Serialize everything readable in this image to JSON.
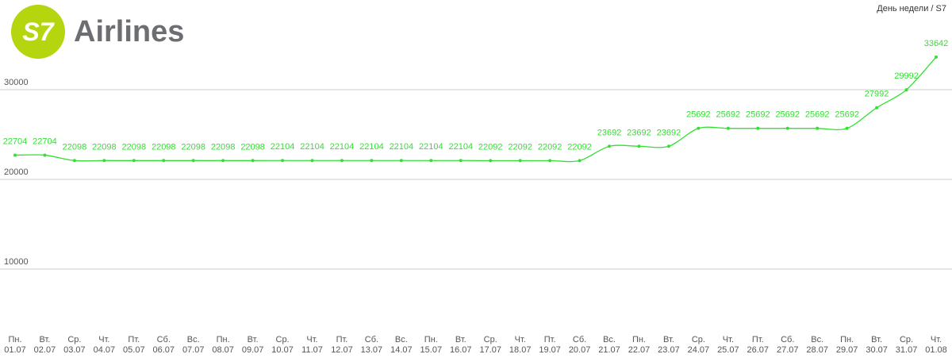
{
  "logo": {
    "mark": "S7",
    "name": "Airlines"
  },
  "chart_data": {
    "type": "line",
    "legend_label": "День недели / S7",
    "categories": [
      [
        "Пн.",
        "01.07"
      ],
      [
        "Вт.",
        "02.07"
      ],
      [
        "Ср.",
        "03.07"
      ],
      [
        "Чт.",
        "04.07"
      ],
      [
        "Пт.",
        "05.07"
      ],
      [
        "Сб.",
        "06.07"
      ],
      [
        "Вс.",
        "07.07"
      ],
      [
        "Пн.",
        "08.07"
      ],
      [
        "Вт.",
        "09.07"
      ],
      [
        "Ср.",
        "10.07"
      ],
      [
        "Чт.",
        "11.07"
      ],
      [
        "Пт.",
        "12.07"
      ],
      [
        "Сб.",
        "13.07"
      ],
      [
        "Вс.",
        "14.07"
      ],
      [
        "Пн.",
        "15.07"
      ],
      [
        "Вт.",
        "16.07"
      ],
      [
        "Ср.",
        "17.07"
      ],
      [
        "Чт.",
        "18.07"
      ],
      [
        "Пт.",
        "19.07"
      ],
      [
        "Сб.",
        "20.07"
      ],
      [
        "Вс.",
        "21.07"
      ],
      [
        "Пн.",
        "22.07"
      ],
      [
        "Вт.",
        "23.07"
      ],
      [
        "Ср.",
        "24.07"
      ],
      [
        "Чт.",
        "25.07"
      ],
      [
        "Пт.",
        "26.07"
      ],
      [
        "Сб.",
        "27.07"
      ],
      [
        "Вс.",
        "28.07"
      ],
      [
        "Пн.",
        "29.07"
      ],
      [
        "Вт.",
        "30.07"
      ],
      [
        "Ср.",
        "31.07"
      ],
      [
        "Чт.",
        "01.08"
      ]
    ],
    "series": [
      {
        "name": "S7",
        "color": "#33e033",
        "values": [
          22704,
          22704,
          22098,
          22098,
          22098,
          22098,
          22098,
          22098,
          22098,
          22104,
          22104,
          22104,
          22104,
          22104,
          22104,
          22104,
          22092,
          22092,
          22092,
          22092,
          23692,
          23692,
          23692,
          25692,
          25692,
          25692,
          25692,
          25692,
          25692,
          27992,
          29992,
          33642
        ]
      }
    ],
    "ylim": [
      0,
      40000
    ],
    "yticks": [
      10000,
      20000,
      30000
    ],
    "grid": true
  }
}
